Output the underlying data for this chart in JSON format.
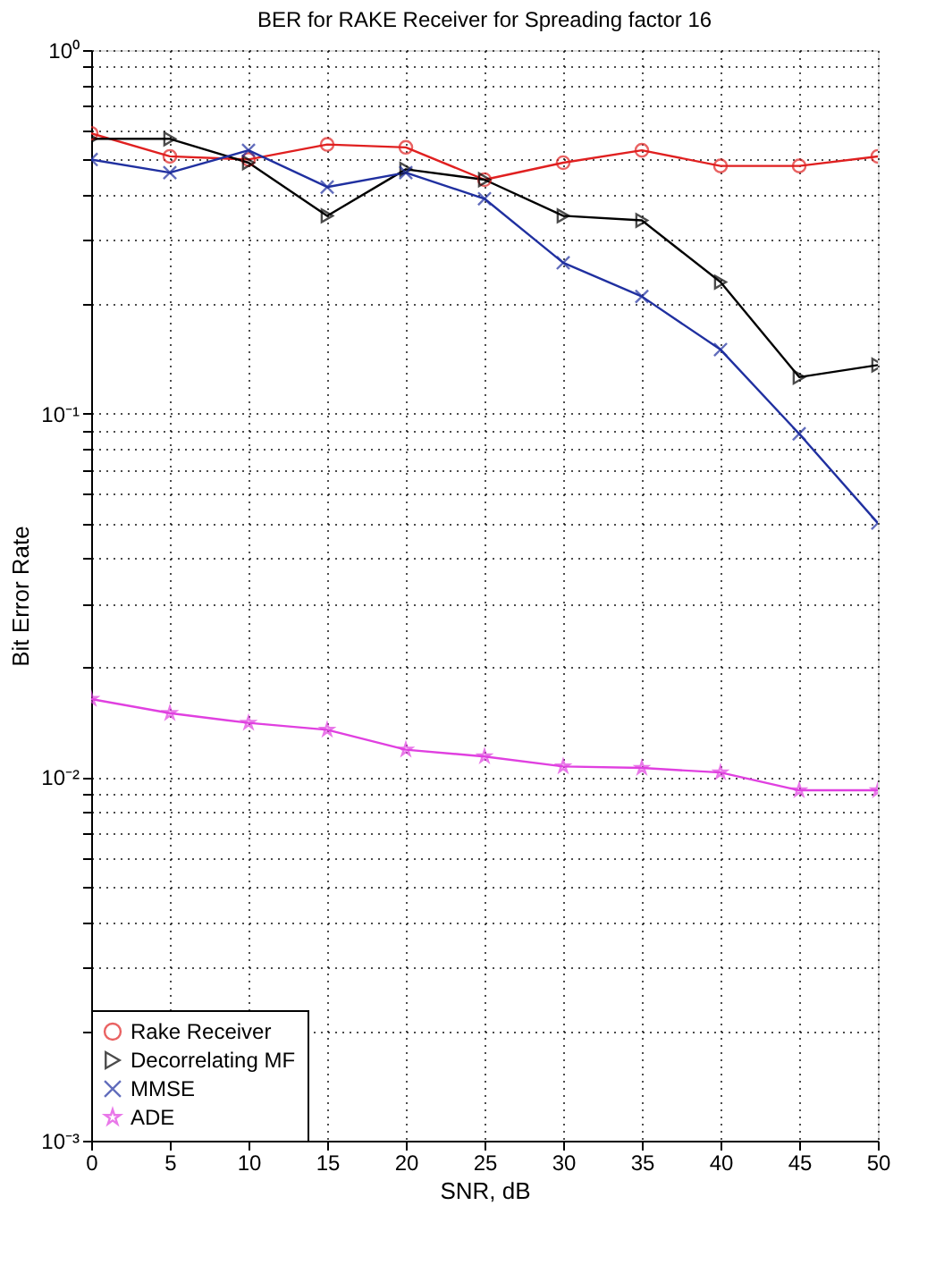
{
  "chart_data": {
    "type": "line",
    "title": "BER for RAKE Receiver for Spreading factor 16",
    "xlabel": "SNR, dB",
    "ylabel": "Bit Error Rate",
    "x": [
      0,
      5,
      10,
      15,
      20,
      25,
      30,
      35,
      40,
      45,
      50
    ],
    "series": [
      {
        "name": "Rake Receiver",
        "color": "#e02020",
        "marker": "circle",
        "values": [
          0.59,
          0.51,
          0.5,
          0.55,
          0.54,
          0.44,
          0.49,
          0.53,
          0.48,
          0.48,
          0.51
        ]
      },
      {
        "name": "Decorrelating MF",
        "color": "#000000",
        "marker": "triangle",
        "values": [
          0.57,
          0.57,
          0.49,
          0.35,
          0.47,
          0.44,
          0.35,
          0.34,
          0.23,
          0.126,
          0.136
        ]
      },
      {
        "name": "MMSE",
        "color": "#2030a0",
        "marker": "cross",
        "values": [
          0.5,
          0.46,
          0.53,
          0.42,
          0.46,
          0.39,
          0.26,
          0.21,
          0.15,
          0.088,
          0.05
        ]
      },
      {
        "name": "ADE",
        "color": "#e040e0",
        "marker": "star",
        "values": [
          0.0164,
          0.015,
          0.0141,
          0.0135,
          0.0119,
          0.0114,
          0.0107,
          0.0106,
          0.0103,
          0.0092,
          0.0092
        ]
      }
    ],
    "log": "y",
    "xlim": [
      0,
      50
    ],
    "ylim": [
      0.001,
      1
    ],
    "xticks": [
      0,
      5,
      10,
      15,
      20,
      25,
      30,
      35,
      40,
      45,
      50
    ],
    "yticks": [
      {
        "value": 0.001,
        "label": "10⁻³"
      },
      {
        "value": 0.002,
        "label": null
      },
      {
        "value": 0.003,
        "label": null
      },
      {
        "value": 0.004,
        "label": null
      },
      {
        "value": 0.005,
        "label": null
      },
      {
        "value": 0.006,
        "label": null
      },
      {
        "value": 0.007,
        "label": null
      },
      {
        "value": 0.008,
        "label": null
      },
      {
        "value": 0.009,
        "label": null
      },
      {
        "value": 0.01,
        "label": "10⁻²"
      },
      {
        "value": 0.02,
        "label": null
      },
      {
        "value": 0.03,
        "label": null
      },
      {
        "value": 0.04,
        "label": null
      },
      {
        "value": 0.05,
        "label": null
      },
      {
        "value": 0.06,
        "label": null
      },
      {
        "value": 0.07,
        "label": null
      },
      {
        "value": 0.08,
        "label": null
      },
      {
        "value": 0.09,
        "label": null
      },
      {
        "value": 0.1,
        "label": "10⁻¹"
      },
      {
        "value": 0.2,
        "label": null
      },
      {
        "value": 0.3,
        "label": null
      },
      {
        "value": 0.4,
        "label": null
      },
      {
        "value": 0.5,
        "label": null
      },
      {
        "value": 0.6,
        "label": null
      },
      {
        "value": 0.7,
        "label": null
      },
      {
        "value": 0.8,
        "label": null
      },
      {
        "value": 0.9,
        "label": null
      },
      {
        "value": 1,
        "label": "10⁰"
      }
    ],
    "grid": true,
    "legend": "bottom left",
    "line_style": "solid"
  }
}
